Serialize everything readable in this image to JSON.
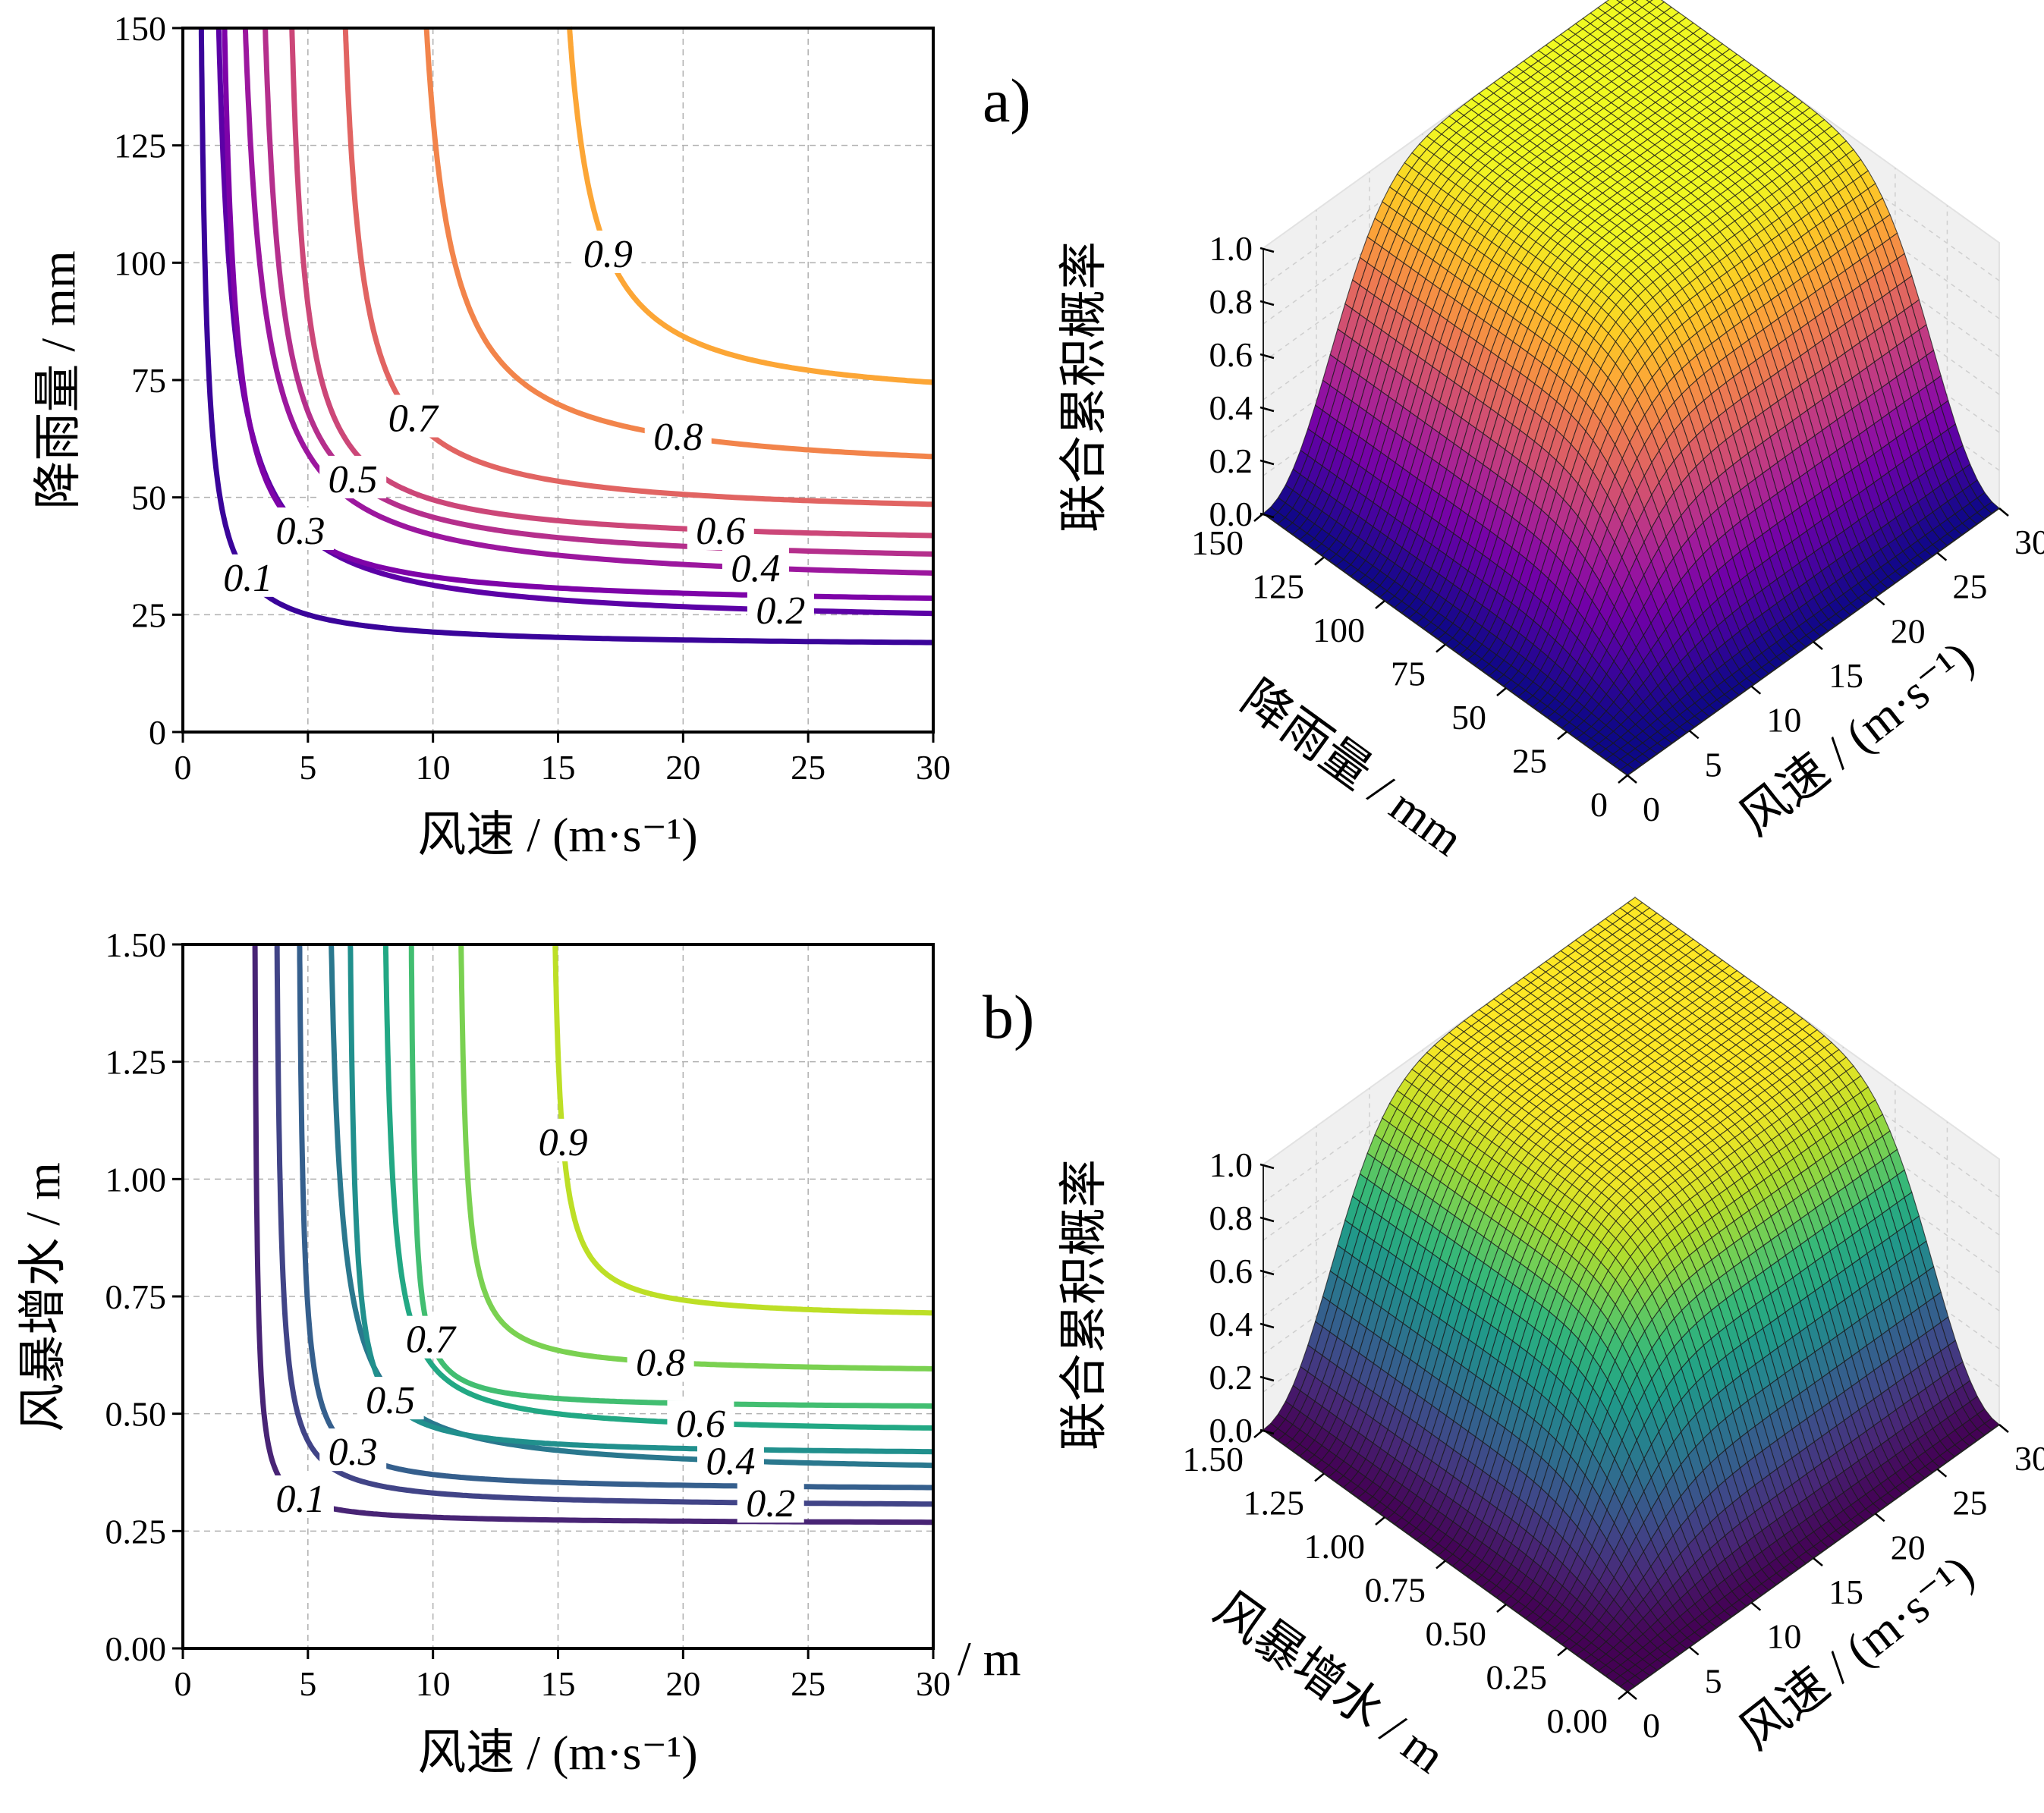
{
  "chart_data": [
    {
      "type": "contour",
      "panel_label": "a)",
      "xlabel": "风速 / (m·s⁻¹)",
      "ylabel": "降雨量 / mm",
      "xlim": [
        0,
        30
      ],
      "ylim": [
        0,
        150
      ],
      "xticks": [
        "0",
        "5",
        "10",
        "15",
        "20",
        "25",
        "30"
      ],
      "yticks": [
        "0",
        "25",
        "50",
        "75",
        "100",
        "125",
        "150"
      ],
      "colormap": "plasma",
      "grid": true,
      "levels": [
        {
          "value": 0.1,
          "label": "0.1",
          "x_asym": 0.5,
          "y_asym": 18.0,
          "color": "#3a049a",
          "label_at": [
            2.6,
            33.0
          ]
        },
        {
          "value": 0.2,
          "label": "0.2",
          "x_asym": 0.8,
          "y_asym": 22.5,
          "color": "#5c01a6",
          "label_at": [
            23.9,
            26.0
          ]
        },
        {
          "value": 0.3,
          "label": "0.3",
          "x_asym": 1.2,
          "y_asym": 26.5,
          "color": "#7e03a8",
          "label_at": [
            4.7,
            43.0
          ]
        },
        {
          "value": 0.4,
          "label": "0.4",
          "x_asym": 1.7,
          "y_asym": 30.5,
          "color": "#9c179e",
          "label_at": [
            22.9,
            35.0
          ]
        },
        {
          "value": 0.5,
          "label": "0.5",
          "x_asym": 2.6,
          "y_asym": 35.0,
          "color": "#b52f8c",
          "label_at": [
            6.8,
            54.0
          ]
        },
        {
          "value": 0.6,
          "label": "0.6",
          "x_asym": 3.8,
          "y_asym": 39.5,
          "color": "#cc4778",
          "label_at": [
            21.5,
            43.0
          ]
        },
        {
          "value": 0.7,
          "label": "0.7",
          "x_asym": 5.8,
          "y_asym": 45.5,
          "color": "#e16462",
          "label_at": [
            9.2,
            67.0
          ]
        },
        {
          "value": 0.8,
          "label": "0.8",
          "x_asym": 8.7,
          "y_asym": 54.0,
          "color": "#f2844b",
          "label_at": [
            19.8,
            63.0
          ]
        },
        {
          "value": 0.9,
          "label": "0.9",
          "x_asym": 14.4,
          "y_asym": 69.0,
          "color": "#fca636",
          "label_at": [
            17.0,
            102.0
          ]
        }
      ]
    },
    {
      "type": "surface3d",
      "zlabel": "联合累积概率",
      "xlabel": "风速 / (m·s⁻¹)",
      "ylabel": "降雨量 / mm",
      "xticks": [
        "0",
        "5",
        "10",
        "15",
        "20",
        "25",
        "30"
      ],
      "yticks": [
        "0",
        "25",
        "50",
        "75",
        "100",
        "125",
        "150"
      ],
      "zticks": [
        "0.0",
        "0.2",
        "0.4",
        "0.6",
        "0.8",
        "1.0"
      ],
      "zlim": [
        0,
        1
      ],
      "colormap": "plasma"
    },
    {
      "type": "contour",
      "panel_label": "b)",
      "xlabel": "风速 / (m·s⁻¹)",
      "ylabel": "风暴增水 / m",
      "xlim": [
        0,
        30
      ],
      "ylim": [
        0,
        1.5
      ],
      "xticks": [
        "0",
        "5",
        "10",
        "15",
        "20",
        "25",
        "30"
      ],
      "yticks": [
        "0.00",
        "0.25",
        "0.50",
        "0.75",
        "1.00",
        "1.25",
        "1.50"
      ],
      "colormap": "viridis",
      "grid": true,
      "stray_text": "/ m",
      "levels": [
        {
          "value": 0.1,
          "label": "0.1",
          "x_asym": 2.8,
          "y_asym": 0.265,
          "color": "#482475",
          "label_at": [
            4.7,
            0.32
          ]
        },
        {
          "value": 0.2,
          "label": "0.2",
          "x_asym": 3.6,
          "y_asym": 0.3,
          "color": "#414487",
          "label_at": [
            23.5,
            0.31
          ]
        },
        {
          "value": 0.3,
          "label": "0.3",
          "x_asym": 4.5,
          "y_asym": 0.335,
          "color": "#355f8d",
          "label_at": [
            6.8,
            0.42
          ]
        },
        {
          "value": 0.4,
          "label": "0.4",
          "x_asym": 5.5,
          "y_asym": 0.37,
          "color": "#2a788e",
          "label_at": [
            21.9,
            0.4
          ]
        },
        {
          "value": 0.5,
          "label": "0.5",
          "x_asym": 6.5,
          "y_asym": 0.41,
          "color": "#21908d",
          "label_at": [
            8.3,
            0.53
          ]
        },
        {
          "value": 0.6,
          "label": "0.6",
          "x_asym": 7.8,
          "y_asym": 0.455,
          "color": "#22a884",
          "label_at": [
            20.7,
            0.48
          ]
        },
        {
          "value": 0.7,
          "label": "0.7",
          "x_asym": 9.0,
          "y_asym": 0.51,
          "color": "#42be71",
          "label_at": [
            9.9,
            0.66
          ]
        },
        {
          "value": 0.8,
          "label": "0.8",
          "x_asym": 10.9,
          "y_asym": 0.585,
          "color": "#7ad151",
          "label_at": [
            19.1,
            0.61
          ]
        },
        {
          "value": 0.9,
          "label": "0.9",
          "x_asym": 14.6,
          "y_asym": 0.7,
          "color": "#bddf26",
          "label_at": [
            15.2,
            1.08
          ]
        }
      ]
    },
    {
      "type": "surface3d",
      "zlabel": "联合累积概率",
      "xlabel": "风速 / (m·s⁻¹)",
      "ylabel": "风暴增水 / m",
      "xticks": [
        "0",
        "5",
        "10",
        "15",
        "20",
        "25",
        "30"
      ],
      "yticks": [
        "0.00",
        "0.25",
        "0.50",
        "0.75",
        "1.00",
        "1.25",
        "1.50"
      ],
      "zticks": [
        "0.0",
        "0.2",
        "0.4",
        "0.6",
        "0.8",
        "1.0"
      ],
      "zlim": [
        0,
        1
      ],
      "colormap": "viridis"
    }
  ]
}
